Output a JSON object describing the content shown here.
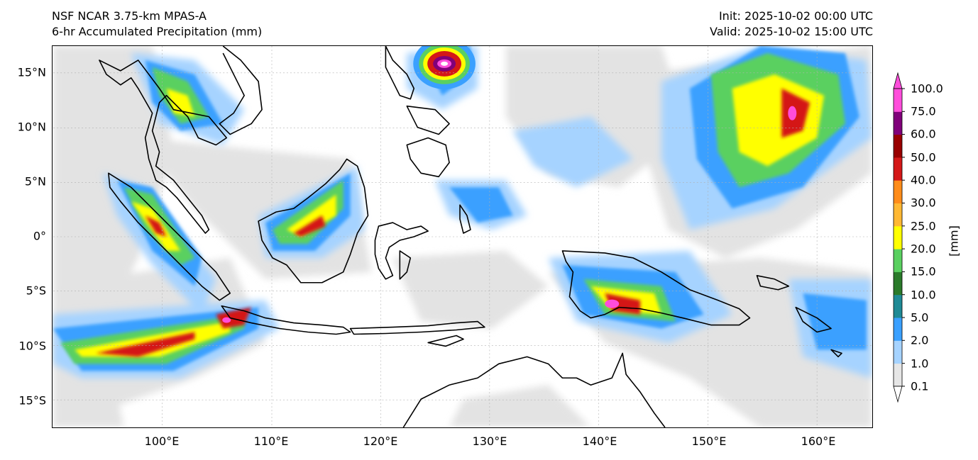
{
  "header": {
    "model": "NSF NCAR 3.75-km MPAS-A",
    "field": "6-hr Accumulated Precipitation (mm)",
    "init": "Init: 2025-10-02 00:00 UTC",
    "valid": "Valid: 2025-10-02 15:00 UTC"
  },
  "map": {
    "lon_range": [
      90,
      165
    ],
    "lat_range": [
      -17.5,
      17.5
    ],
    "lat_ticks": [
      "15°N",
      "10°N",
      "5°N",
      "0°",
      "5°S",
      "10°S",
      "15°S"
    ],
    "lon_ticks": [
      "100°E",
      "110°E",
      "120°E",
      "130°E",
      "140°E",
      "150°E",
      "160°E"
    ]
  },
  "colorbar": {
    "unit": "[mm]",
    "levels": [
      "0.1",
      "1.0",
      "2.0",
      "5.0",
      "10.0",
      "15.0",
      "20.0",
      "25.0",
      "30.0",
      "40.0",
      "50.0",
      "60.0",
      "75.0",
      "100.0"
    ],
    "colors": [
      "#e6e6e6",
      "#a6d3ff",
      "#3aa0ff",
      "#1f8a95",
      "#2a7a2a",
      "#5ad060",
      "#ffff00",
      "#ffb833",
      "#ff8c1a",
      "#d41818",
      "#990000",
      "#80007a",
      "#ff4ddb"
    ]
  }
}
